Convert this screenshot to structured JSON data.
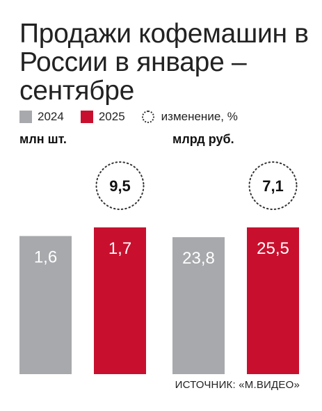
{
  "header": {
    "title": "Продажи кофемашин в России в январе – сентябре"
  },
  "legend": {
    "items": [
      {
        "label": "2024",
        "color": "#a7a9ac",
        "shape": "square"
      },
      {
        "label": "2025",
        "color": "#c8102e",
        "shape": "square"
      },
      {
        "label": "изменение, %",
        "color": "#333333",
        "shape": "dotted-circle"
      }
    ]
  },
  "chart_data": [
    {
      "type": "bar",
      "ylabel": "млн шт.",
      "categories": [
        "2024",
        "2025"
      ],
      "values": [
        1.6,
        1.7
      ],
      "value_labels": [
        "1,6",
        "1,7"
      ],
      "colors": [
        "#a7a9ac",
        "#c8102e"
      ],
      "change_label": "9,5",
      "change_value": 9.5
    },
    {
      "type": "bar",
      "ylabel": "млрд руб.",
      "categories": [
        "2024",
        "2025"
      ],
      "values": [
        23.8,
        25.5
      ],
      "value_labels": [
        "23,8",
        "25,5"
      ],
      "colors": [
        "#a7a9ac",
        "#c8102e"
      ],
      "change_label": "7,1",
      "change_value": 7.1
    }
  ],
  "footer": {
    "source": "ИСТОЧНИК: «М.ВИДЕО»"
  }
}
